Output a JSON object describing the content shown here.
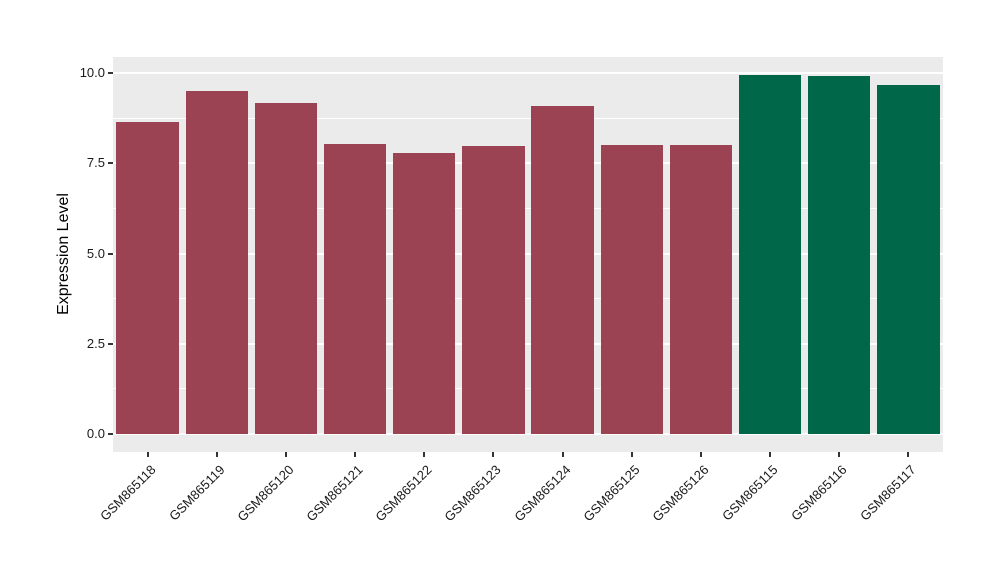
{
  "chart_data": {
    "type": "bar",
    "title": "",
    "xlabel": "",
    "ylabel": "Expression Level",
    "categories": [
      "GSM865118",
      "GSM865119",
      "GSM865120",
      "GSM865121",
      "GSM865122",
      "GSM865123",
      "GSM865124",
      "GSM865125",
      "GSM865126",
      "GSM865115",
      "GSM865116",
      "GSM865117"
    ],
    "values": [
      8.65,
      9.5,
      9.17,
      8.04,
      7.79,
      7.99,
      9.09,
      8.01,
      8.02,
      9.94,
      9.91,
      9.66
    ],
    "bar_colors": [
      "#9B4352",
      "#9B4352",
      "#9B4352",
      "#9B4352",
      "#9B4352",
      "#9B4352",
      "#9B4352",
      "#9B4352",
      "#9B4352",
      "#006748",
      "#006748",
      "#006748"
    ],
    "color_groups": {
      "#9B4352": [
        "GSM865118",
        "GSM865119",
        "GSM865120",
        "GSM865121",
        "GSM865122",
        "GSM865123",
        "GSM865124",
        "GSM865125",
        "GSM865126"
      ],
      "#006748": [
        "GSM865115",
        "GSM865116",
        "GSM865117"
      ]
    },
    "ylim": [
      0,
      10
    ],
    "value_range": [
      -0.5,
      10.45
    ],
    "y_ticks": [
      0,
      2.5,
      5,
      7.5,
      10
    ],
    "y_tick_labels": [
      "0.0",
      "2.5",
      "5.0",
      "7.5",
      "10.0"
    ],
    "y_minor_ticks": [
      1.25,
      3.75,
      6.25,
      8.75
    ],
    "x_label_rotation_deg": 45,
    "bar_slot_fill": 0.9,
    "grid": "on",
    "legend": "none",
    "panel_background": "#EBEBEB",
    "gridline_color": "#FFFFFF",
    "axis_text_color": "#1a1a1a"
  }
}
